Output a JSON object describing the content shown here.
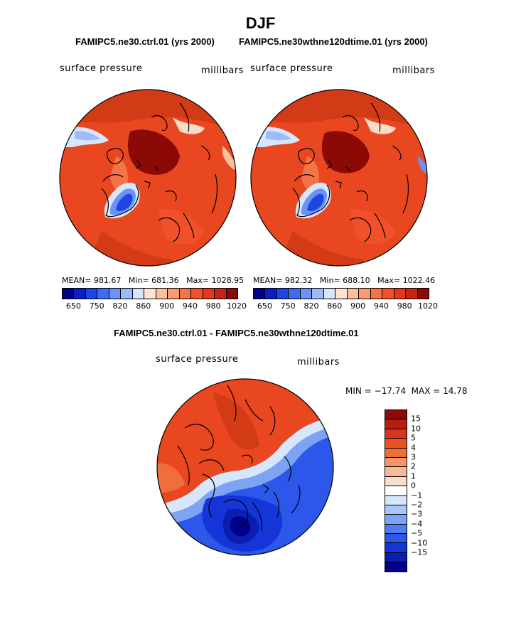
{
  "title": "DJF",
  "panels": {
    "left": {
      "case": "FAMIPC5.ne30.ctrl.01 (yrs 2000)",
      "variable": "surface pressure",
      "units": "millibars",
      "mean": "981.67",
      "min": "681.36",
      "max": "1028.95"
    },
    "right": {
      "case": "FAMIPC5.ne30wthne120dtime.01 (yrs 2000)",
      "variable": "surface pressure",
      "units": "millibars",
      "mean": "982.32",
      "min": "688.10",
      "max": "1022.46"
    }
  },
  "stat_labels": {
    "mean": "MEAN=",
    "min": "Min=",
    "max": "Max="
  },
  "abs_colorbar": {
    "colors": [
      "#00008b",
      "#0a1fc1",
      "#1e46e4",
      "#3c6cf0",
      "#6b93f5",
      "#9dbbf8",
      "#d6e6fb",
      "#fde3d2",
      "#fbbf9e",
      "#f89b6f",
      "#f47447",
      "#f0512a",
      "#e3381a",
      "#c62414",
      "#8b0a05"
    ],
    "ticks": [
      "650",
      "750",
      "820",
      "860",
      "900",
      "940",
      "980",
      "1020"
    ]
  },
  "diff": {
    "title": "FAMIPC5.ne30.ctrl.01 - FAMIPC5.ne30wthne120dtime.01",
    "variable": "surface pressure",
    "units": "millibars",
    "min_label": "MIN =",
    "min": "−17.74",
    "max_label": "MAX =",
    "max": "14.78"
  },
  "diff_colorbar": {
    "colors": [
      "#8b0a05",
      "#b81e0d",
      "#d7351a",
      "#ea5020",
      "#f06e3c",
      "#f59569",
      "#f8b999",
      "#fbdcc9",
      "#ffffff",
      "#d6e6fb",
      "#aac6f8",
      "#7ea3f4",
      "#4f7df0",
      "#2c57ea",
      "#1535d8",
      "#0a1fb0",
      "#00008b"
    ],
    "ticks": [
      "15",
      "10",
      "5",
      "4",
      "3",
      "2",
      "1",
      "0",
      "−1",
      "−2",
      "−3",
      "−4",
      "−5",
      "−10",
      "−15"
    ]
  },
  "map_colors": {
    "outline": "#000000",
    "ocean": "#e8471f"
  }
}
